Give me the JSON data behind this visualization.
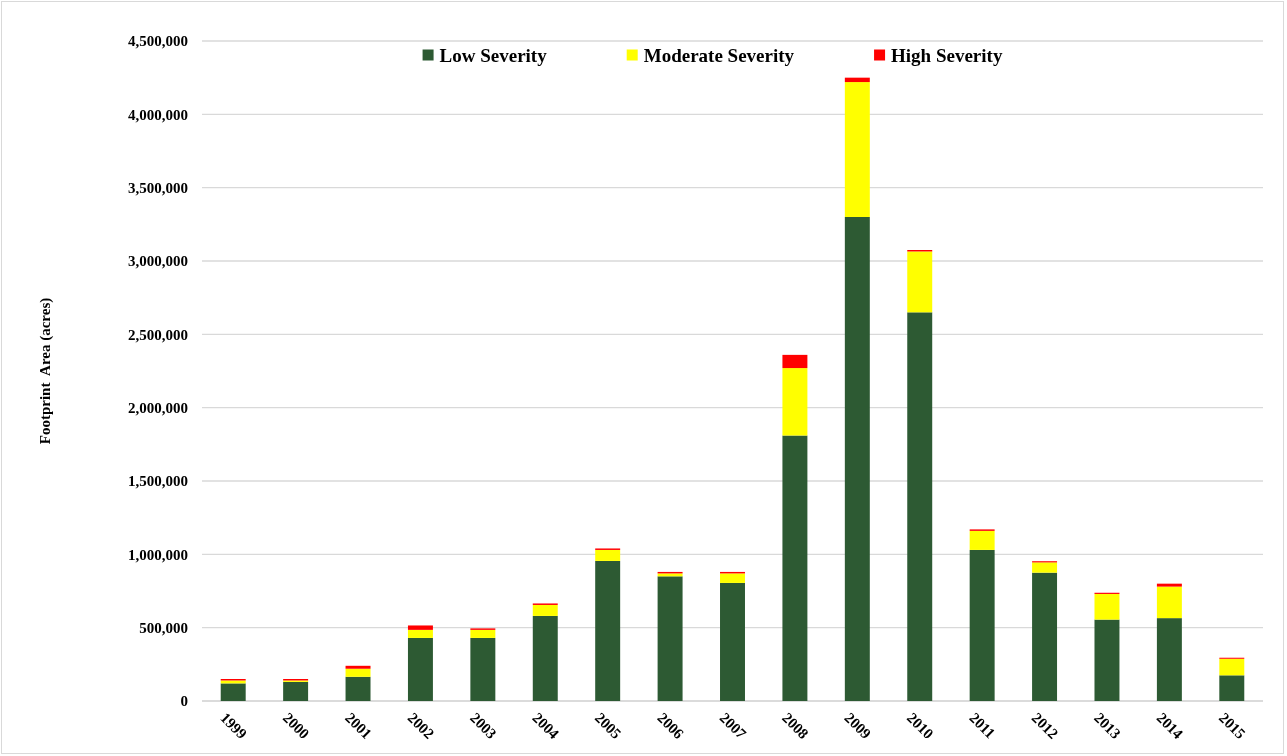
{
  "chart_data": {
    "type": "bar",
    "stacked": true,
    "ylabel": "Footprint  Area (acres)",
    "categories": [
      "1999",
      "2000",
      "2001",
      "2002",
      "2003",
      "2004",
      "2005",
      "2006",
      "2007",
      "2008",
      "2009",
      "2010",
      "2011",
      "2012",
      "2013",
      "2014",
      "2015"
    ],
    "series": [
      {
        "name": "Low Severity",
        "color": "#2d5a33",
        "values": [
          120000,
          130000,
          165000,
          430000,
          430000,
          580000,
          955000,
          850000,
          805000,
          1810000,
          3300000,
          2650000,
          1030000,
          875000,
          555000,
          565000,
          175000
        ]
      },
      {
        "name": "Moderate Severity",
        "color": "#ffff00",
        "values": [
          20000,
          10000,
          55000,
          55000,
          55000,
          75000,
          75000,
          20000,
          65000,
          460000,
          920000,
          415000,
          130000,
          70000,
          175000,
          215000,
          113000
        ]
      },
      {
        "name": "High Severity",
        "color": "#ff0000",
        "values": [
          10000,
          10000,
          20000,
          30000,
          10000,
          10000,
          10000,
          10000,
          10000,
          90000,
          30000,
          10000,
          10000,
          8000,
          8000,
          20000,
          7000
        ]
      }
    ],
    "ylim": [
      0,
      4500000
    ],
    "yticks": [
      {
        "value": 0,
        "label": "0"
      },
      {
        "value": 500000,
        "label": "500,000"
      },
      {
        "value": 1000000,
        "label": "1,000,000"
      },
      {
        "value": 1500000,
        "label": "1,500,000"
      },
      {
        "value": 2000000,
        "label": "2,000,000"
      },
      {
        "value": 2500000,
        "label": "2,500,000"
      },
      {
        "value": 3000000,
        "label": "3,000,000"
      },
      {
        "value": 3500000,
        "label": "3,500,000"
      },
      {
        "value": 4000000,
        "label": "4,000,000"
      },
      {
        "value": 4500000,
        "label": "4,500,000"
      }
    ],
    "grid": "y",
    "legend": "top"
  }
}
